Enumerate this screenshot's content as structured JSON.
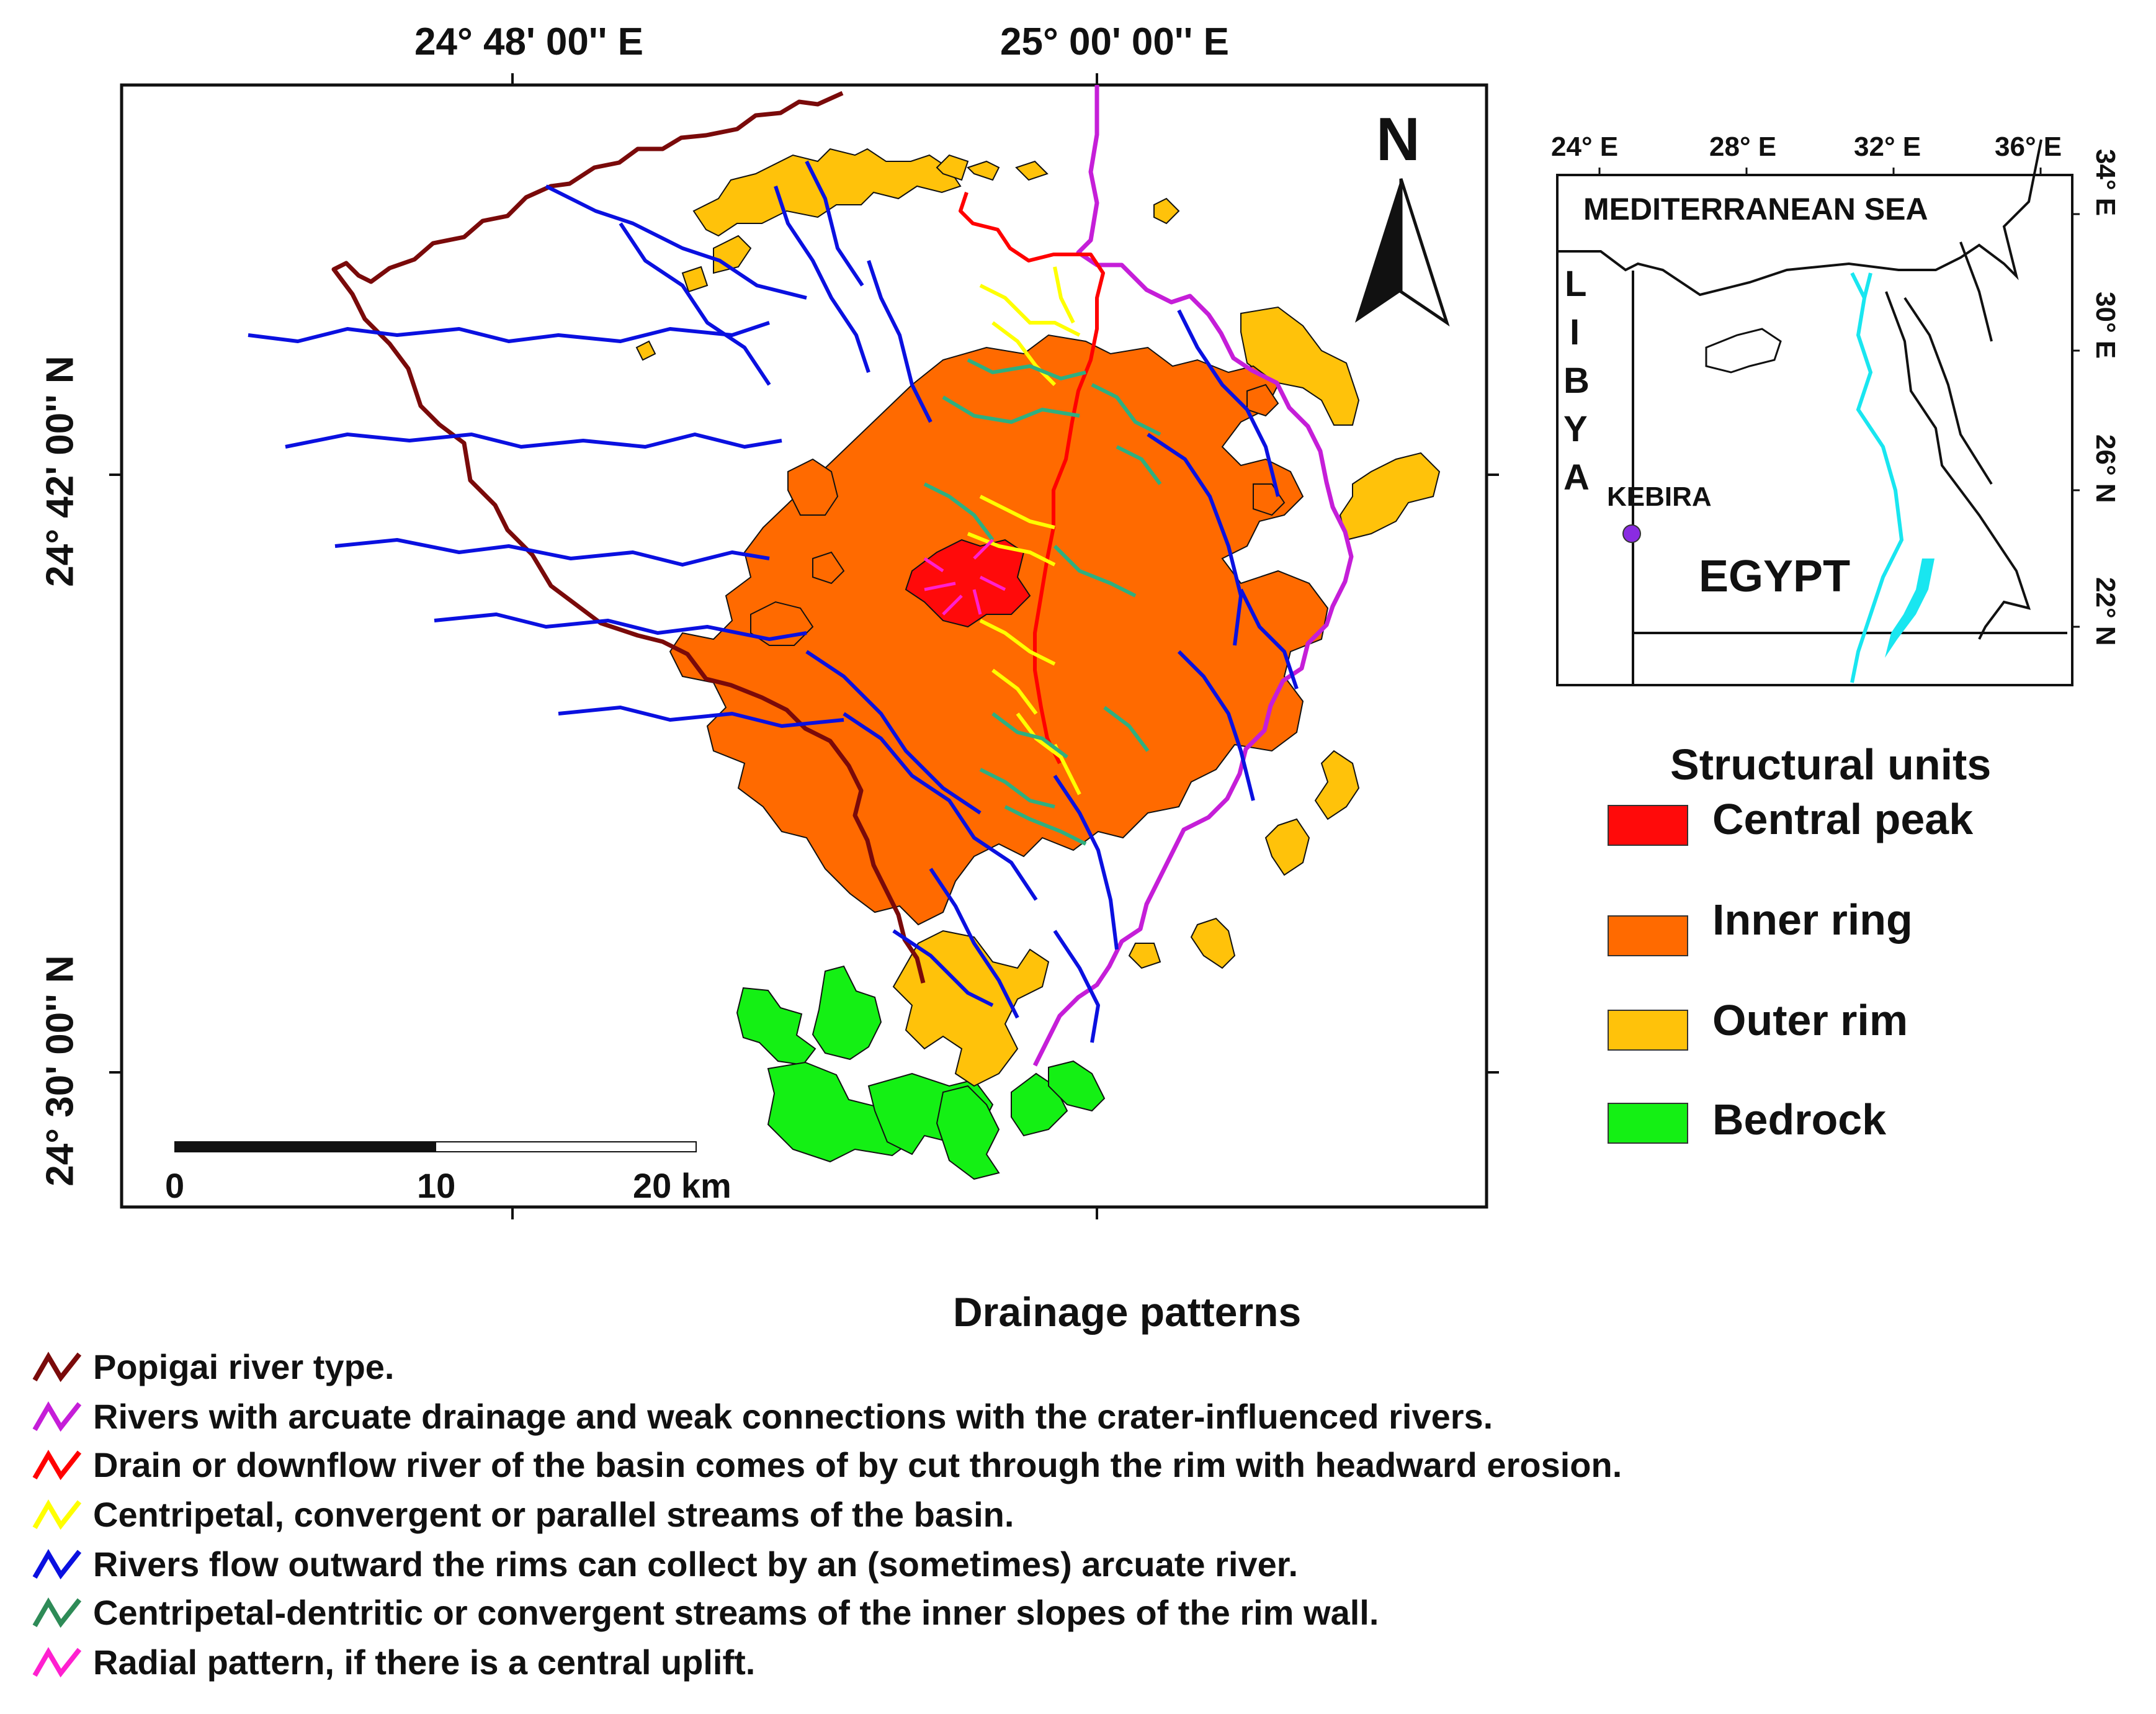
{
  "map": {
    "top_axis": [
      "24° 48' 00'' E",
      "25° 00' 00'' E"
    ],
    "left_axis": [
      "24° 42' 00'' N",
      "24° 30' 00'' N"
    ],
    "north_label": "N",
    "scale": {
      "labels": [
        "0",
        "10",
        "20 km"
      ]
    }
  },
  "inset": {
    "top_ticks": [
      "24° E",
      "28° E",
      "32° E",
      "36° E"
    ],
    "right_ticks": [
      "34° E",
      "30° E",
      "26° N",
      "22° N"
    ],
    "sea_label": "MEDITERRANEAN SEA",
    "country_label": "EGYPT",
    "libya_letters": [
      "L",
      "I",
      "B",
      "Y",
      "A"
    ],
    "site_label": "KEBIRA",
    "colors": {
      "nile": "#19e6f0",
      "site": "#8a2be2"
    }
  },
  "structural_units": {
    "title": "Structural units",
    "items": [
      {
        "label": "Central peak",
        "color": "#ff0a0a"
      },
      {
        "label": "Inner ring",
        "color": "#ff6a00"
      },
      {
        "label": "Outer rim",
        "color": "#ffc20a"
      },
      {
        "label": "Bedrock",
        "color": "#14f014"
      }
    ]
  },
  "drainage_patterns": {
    "title": "Drainage patterns",
    "items": [
      {
        "label": "Popigai river type.",
        "color": "#7a0a0a"
      },
      {
        "label": "Rivers with arcuate drainage and weak connections with the crater-influenced rivers.",
        "color": "#c51ed8"
      },
      {
        "label": "Drain or downflow river of the basin comes of by cut through the rim with headward erosion.",
        "color": "#ff0000"
      },
      {
        "label": "Centripetal, convergent or parallel streams of the basin.",
        "color": "#ffff00"
      },
      {
        "label": "Rivers flow outward the rims can collect by an (sometimes) arcuate river.",
        "color": "#0a10e0"
      },
      {
        "label": "Centripetal-dentritic or convergent streams of the inner slopes of the rim wall.",
        "color": "#2e8b57"
      },
      {
        "label": "Radial pattern, if there is a central uplift.",
        "color": "#ff20d0"
      }
    ]
  }
}
